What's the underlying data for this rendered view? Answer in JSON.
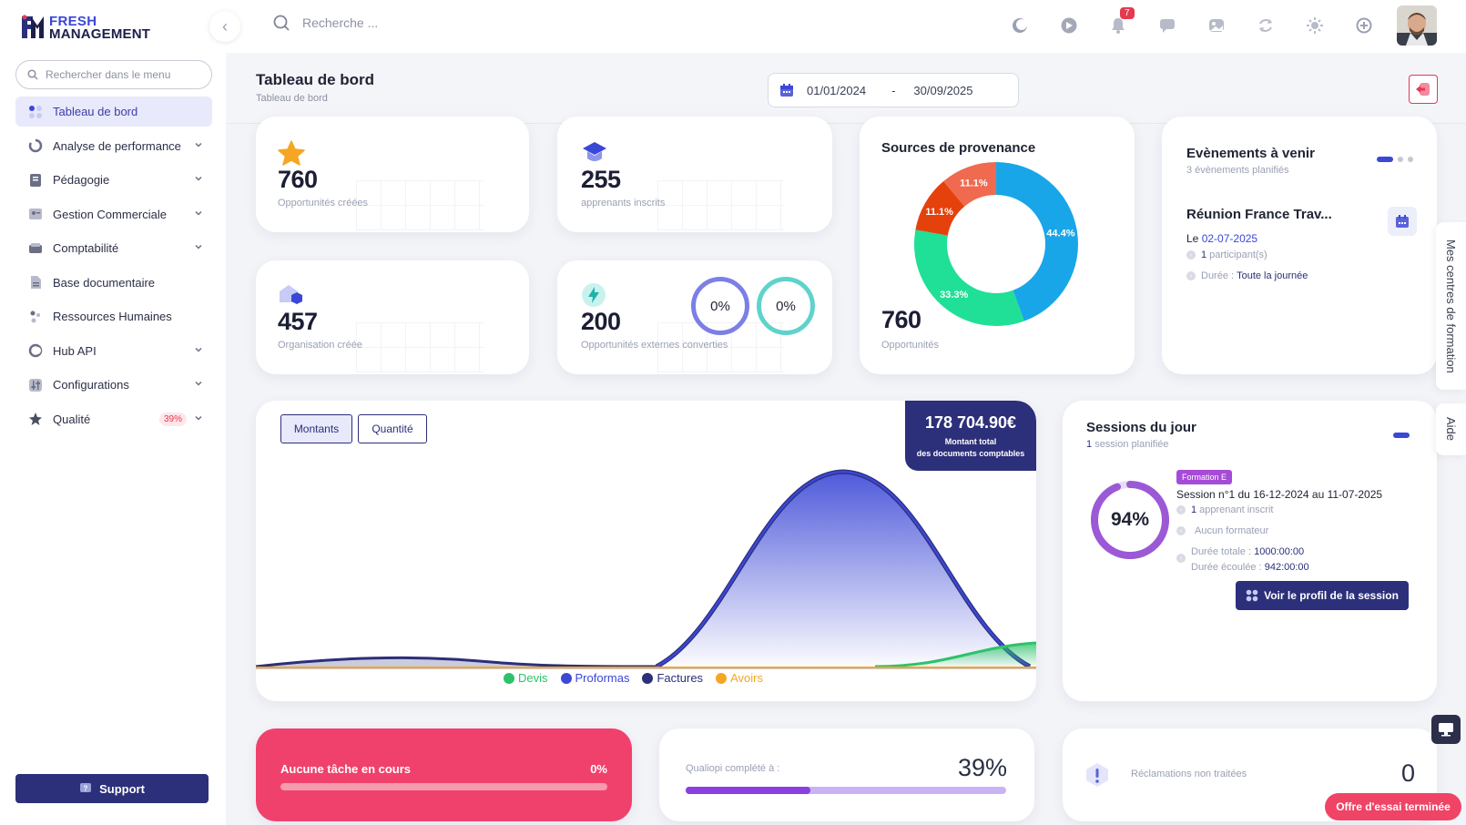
{
  "brand": {
    "line1": "FRESH",
    "line2": "MANAGEMENT"
  },
  "topbar": {
    "search_placeholder": "Recherche ...",
    "notif_count": "7"
  },
  "sidebar": {
    "search_placeholder": "Rechercher dans le menu",
    "items": [
      {
        "label": "Tableau de bord",
        "icon": "grid-icon",
        "active": true,
        "chevron": false
      },
      {
        "label": "Analyse de performance",
        "icon": "performance-icon",
        "chevron": true
      },
      {
        "label": "Pédagogie",
        "icon": "book-icon",
        "chevron": true
      },
      {
        "label": "Gestion Commerciale",
        "icon": "commerce-icon",
        "chevron": true
      },
      {
        "label": "Comptabilité",
        "icon": "wallet-icon",
        "chevron": true
      },
      {
        "label": "Base documentaire",
        "icon": "document-icon",
        "chevron": false
      },
      {
        "label": "Ressources Humaines",
        "icon": "people-icon",
        "chevron": false
      },
      {
        "label": "Hub API",
        "icon": "hub-icon",
        "chevron": true
      },
      {
        "label": "Configurations",
        "icon": "sliders-icon",
        "chevron": true
      },
      {
        "label": "Qualité",
        "icon": "star-icon",
        "chevron": true,
        "badge": "39%"
      }
    ],
    "support_label": "Support"
  },
  "header": {
    "title": "Tableau de bord",
    "breadcrumb": "Tableau de bord",
    "date_start": "01/01/2024",
    "date_sep": "-",
    "date_end": "30/09/2025"
  },
  "stats": {
    "opportunites": {
      "value": "760",
      "label": "Opportunités créées"
    },
    "apprenants": {
      "value": "255",
      "label": "apprenants inscrits"
    },
    "organisation": {
      "value": "457",
      "label": "Organisation créée"
    },
    "externes": {
      "value": "200",
      "label": "Opportunités externes converties",
      "ring1": "0%",
      "ring2": "0%"
    }
  },
  "sources": {
    "title": "Sources de provenance",
    "total": "760",
    "total_label": "Opportunités",
    "slices": [
      {
        "label": "44.4%",
        "value": 44.4,
        "color": "#18a6e8"
      },
      {
        "label": "33.3%",
        "value": 33.3,
        "color": "#1fe096"
      },
      {
        "label": "11.1%",
        "value": 11.1,
        "color": "#e5410c"
      },
      {
        "label": "11.1%",
        "value": 11.1,
        "color": "#ef6a4f"
      }
    ]
  },
  "events": {
    "title": "Evènements à venir",
    "subtitle": "3 évènements planifiés",
    "name": "Réunion France Trav...",
    "date_prefix": "Le",
    "date": "02-07-2025",
    "participants_num": "1",
    "participants_label": "participant(s)",
    "duration_label": "Durée :",
    "duration_value": "Toute la journée"
  },
  "chart_data": {
    "type": "area",
    "buttons": [
      "Montants",
      "Quantité"
    ],
    "total_amount": "178 704.90€",
    "total_label_1": "Montant total",
    "total_label_2": "des documents comptables",
    "series": [
      {
        "name": "Devis",
        "color": "#2ec26a"
      },
      {
        "name": "Proformas",
        "color": "#3b47d6"
      },
      {
        "name": "Factures",
        "color": "#2c2f7a"
      },
      {
        "name": "Avoirs",
        "color": "#f5a623"
      }
    ]
  },
  "sessions": {
    "title": "Sessions du jour",
    "count": "1",
    "count_label": "session planifiée",
    "tag": "Formation E",
    "session_name": "Session n°1 du 16-12-2024 au 11-07-2025",
    "progress": 94,
    "progress_label": "94%",
    "apprenant_num": "1",
    "apprenant_label": "apprenant inscrit",
    "formateur": "Aucun formateur",
    "duree_totale_label": "Durée totale :",
    "duree_totale": "1000:00:00",
    "duree_ecoulee_label": "Durée écoulée :",
    "duree_ecoulee": "942:00:00",
    "button": "Voir le profil de la session"
  },
  "tasks": {
    "label": "Aucune tâche en cours",
    "pct": "0%"
  },
  "qualiopi": {
    "label": "Qualiopi complété à :",
    "pct": "39%",
    "value": 39
  },
  "reclamations": {
    "label": "Réclamations non traitées",
    "count": "0"
  },
  "side_tabs": {
    "formation": "Mes centres de formation",
    "aide": "Aide"
  },
  "trial": "Offre d'essai terminée"
}
